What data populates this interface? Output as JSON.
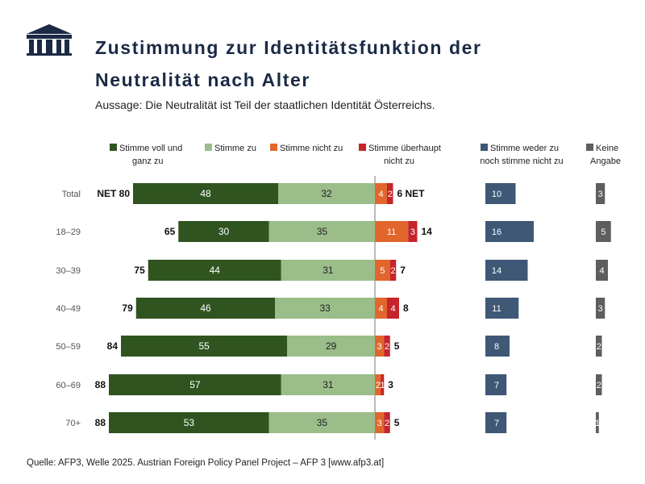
{
  "title_line1": "Zustimmung zur Identitätsfunktion der",
  "title_line2": "Neutralität nach Alter",
  "subtitle": "Aussage: Die Neutralität ist Teil der staatlichen Identität Österreichs.",
  "source": "Quelle: AFP3, Welle 2025. Austrian Foreign Policy Panel Project – AFP 3 [www.afp3.at]",
  "chart_data": {
    "type": "bar",
    "orientation": "horizontal-diverging",
    "categories": [
      "Total",
      "18–29",
      "30–39",
      "40–49",
      "50–59",
      "60–69",
      "70+"
    ],
    "series": [
      {
        "name": "Stimme voll und ganz zu",
        "color": "#2f5420",
        "values": [
          48,
          30,
          44,
          46,
          55,
          57,
          53
        ]
      },
      {
        "name": "Stimme zu",
        "color": "#9bbd8a",
        "values": [
          32,
          35,
          31,
          33,
          29,
          31,
          35
        ]
      },
      {
        "name": "Stimme nicht zu",
        "color": "#e0662e",
        "values": [
          4,
          11,
          5,
          4,
          3,
          2,
          3
        ]
      },
      {
        "name": "Stimme überhaupt nicht zu",
        "color": "#c4242a",
        "values": [
          2,
          3,
          2,
          4,
          2,
          1,
          2
        ]
      },
      {
        "name": "Stimme weder zu noch stimme nicht zu",
        "color": "#3e5876",
        "values": [
          10,
          16,
          14,
          11,
          8,
          7,
          7
        ]
      },
      {
        "name": "Keine Angabe",
        "color": "#5e5e5e",
        "values": [
          3,
          5,
          4,
          3,
          2,
          2,
          1
        ]
      }
    ],
    "net_positive": [
      80,
      65,
      75,
      79,
      84,
      88,
      88
    ],
    "net_negative": [
      6,
      14,
      7,
      8,
      5,
      3,
      5
    ],
    "net_prefix": "NET",
    "legend": [
      [
        "Stimme voll und",
        "ganz zu"
      ],
      [
        "Stimme zu"
      ],
      [
        "Stimme nicht zu"
      ],
      [
        "Stimme überhaupt",
        "nicht zu"
      ],
      [
        "Stimme weder zu",
        "noch stimme nicht zu"
      ],
      [
        "Keine",
        "Angabe"
      ]
    ]
  }
}
